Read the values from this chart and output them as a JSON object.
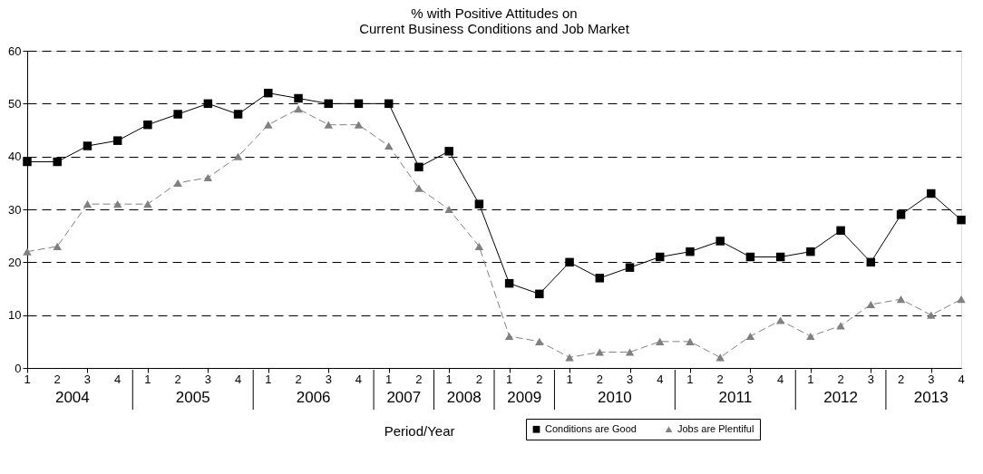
{
  "chart_data": {
    "type": "line",
    "title": [
      "% with Positive Attitudes on",
      "Current Business Conditions and Job Market"
    ],
    "xlabel": "Period/Year",
    "categories": [
      "1",
      "2",
      "3",
      "4",
      "1",
      "2",
      "3",
      "4",
      "1",
      "2",
      "3",
      "4",
      "1",
      "2",
      "1",
      "2",
      "1",
      "2",
      "1",
      "2",
      "3",
      "4",
      "1",
      "2",
      "3",
      "4",
      "1",
      "2",
      "3",
      "2",
      "3",
      "4"
    ],
    "series": [
      {
        "name": "Conditions are Good",
        "color": "#000000",
        "marker": "square",
        "line_style": "solid",
        "values": [
          39,
          39,
          42,
          43,
          46,
          48,
          50,
          48,
          52,
          51,
          50,
          50,
          50,
          38,
          41,
          31,
          16,
          14,
          20,
          17,
          19,
          21,
          22,
          24,
          21,
          21,
          22,
          26,
          20,
          29,
          33,
          28
        ]
      },
      {
        "name": "Jobs are Plentiful",
        "color": "#808080",
        "marker": "triangle",
        "line_style": "dashed",
        "values": [
          22,
          23,
          31,
          31,
          31,
          35,
          36,
          40,
          46,
          49,
          46,
          46,
          42,
          34,
          30,
          23,
          6,
          5,
          2,
          3,
          3,
          5,
          5,
          2,
          6,
          9,
          6,
          8,
          12,
          13,
          10,
          13
        ]
      }
    ],
    "ylim": [
      0,
      60
    ],
    "yticks": [
      0,
      10,
      20,
      30,
      40,
      50,
      60
    ],
    "grid": "y",
    "legend": "bottom right",
    "annotations": [
      "2004",
      "2005",
      "2006",
      "2007",
      "2008",
      "2009",
      "2010",
      "2011",
      "2012",
      "2013"
    ]
  }
}
